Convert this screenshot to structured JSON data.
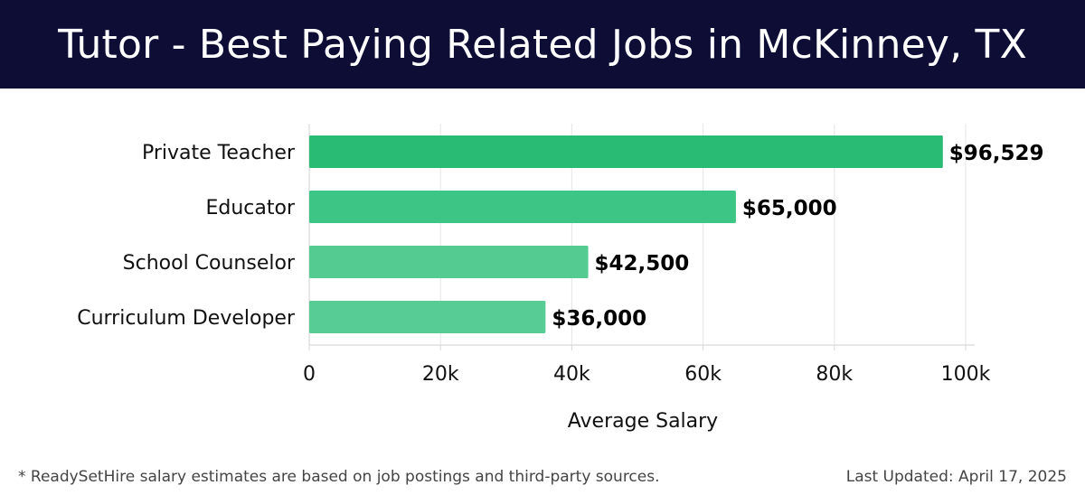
{
  "header": {
    "title": "Tutor - Best Paying Related Jobs in McKinney, TX"
  },
  "chart_data": {
    "type": "bar",
    "orientation": "horizontal",
    "categories": [
      "Private Teacher",
      "Educator",
      "School Counselor",
      "Curriculum Developer"
    ],
    "values": [
      96529,
      65000,
      42500,
      36000
    ],
    "value_labels": [
      "$96,529",
      "$65,000",
      "$42,500",
      "$36,000"
    ],
    "bar_colors": [
      "#29bb73",
      "#3cc585",
      "#53cb91",
      "#57cd95"
    ],
    "xlabel": "Average Salary",
    "ylabel": "",
    "xlim": [
      0,
      100000
    ],
    "xticks": [
      0,
      20000,
      40000,
      60000,
      80000,
      100000
    ],
    "xtick_labels": [
      "0",
      "20k",
      "40k",
      "60k",
      "80k",
      "100k"
    ],
    "grid": true
  },
  "footer": {
    "note": "* ReadySetHire salary estimates are based on job postings and third-party sources.",
    "updated": "Last Updated: April 17, 2025"
  }
}
